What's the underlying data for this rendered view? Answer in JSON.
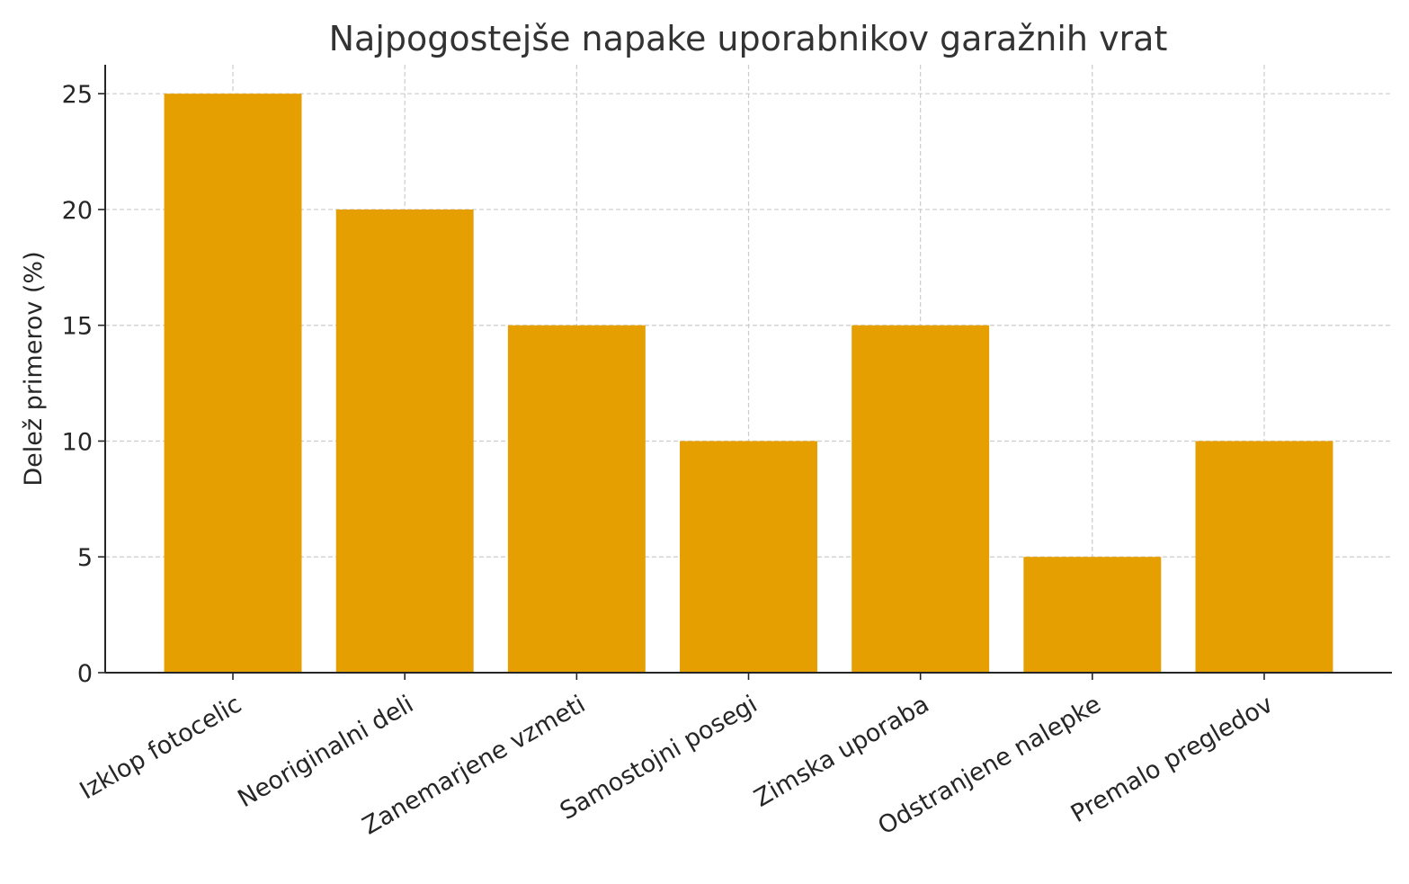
{
  "chart_data": {
    "type": "bar",
    "title": "Najpogostejše napake uporabnikov garažnih vrat",
    "xlabel": "",
    "ylabel": "Delež primerov (%)",
    "categories": [
      "Izklop fotocelic",
      "Neoriginalni deli",
      "Zanemarjene vzmeti",
      "Samostojni posegi",
      "Zimska uporaba",
      "Odstranjene nalepke",
      "Premalo pregledov"
    ],
    "values": [
      25,
      20,
      15,
      10,
      15,
      5,
      10
    ],
    "ylim": [
      0,
      26.25
    ],
    "yticks": [
      0,
      5,
      10,
      15,
      20,
      25
    ],
    "grid": true,
    "bar_color": "#E69F00"
  }
}
